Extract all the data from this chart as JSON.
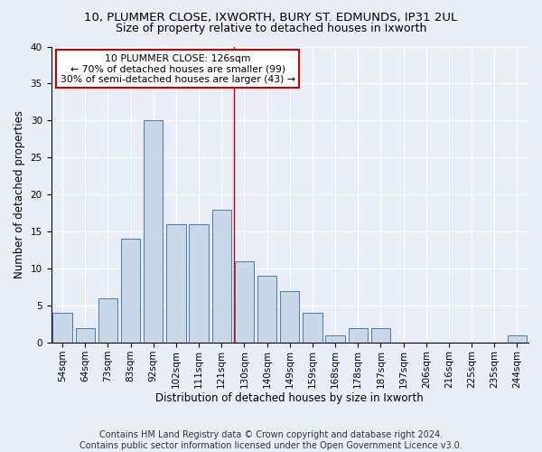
{
  "title1": "10, PLUMMER CLOSE, IXWORTH, BURY ST. EDMUNDS, IP31 2UL",
  "title2": "Size of property relative to detached houses in Ixworth",
  "xlabel": "Distribution of detached houses by size in Ixworth",
  "ylabel": "Number of detached properties",
  "footnote1": "Contains HM Land Registry data © Crown copyright and database right 2024.",
  "footnote2": "Contains public sector information licensed under the Open Government Licence v3.0.",
  "bar_labels": [
    "54sqm",
    "64sqm",
    "73sqm",
    "83sqm",
    "92sqm",
    "102sqm",
    "111sqm",
    "121sqm",
    "130sqm",
    "140sqm",
    "149sqm",
    "159sqm",
    "168sqm",
    "178sqm",
    "187sqm",
    "197sqm",
    "206sqm",
    "216sqm",
    "225sqm",
    "235sqm",
    "244sqm"
  ],
  "bar_values": [
    4,
    2,
    6,
    14,
    30,
    16,
    16,
    18,
    11,
    9,
    7,
    4,
    1,
    2,
    2,
    0,
    0,
    0,
    0,
    0,
    1
  ],
  "bar_color": "#c8d8e8",
  "bar_edge_color": "#4a7aab",
  "property_label": "10 PLUMMER CLOSE: 126sqm",
  "annotation_line1": "← 70% of detached houses are smaller (99)",
  "annotation_line2": "30% of semi-detached houses are larger (43) →",
  "vline_color": "#cc0000",
  "box_edge_color": "#cc0000",
  "ylim": [
    0,
    40
  ],
  "yticks": [
    0,
    5,
    10,
    15,
    20,
    25,
    30,
    35,
    40
  ],
  "bg_color": "#e8eef8",
  "plot_bg_color": "#e8eef8",
  "title1_fontsize": 9.5,
  "title2_fontsize": 9,
  "axis_label_fontsize": 8.5,
  "tick_fontsize": 7.5,
  "annotation_fontsize": 7.8,
  "footnote_fontsize": 7
}
